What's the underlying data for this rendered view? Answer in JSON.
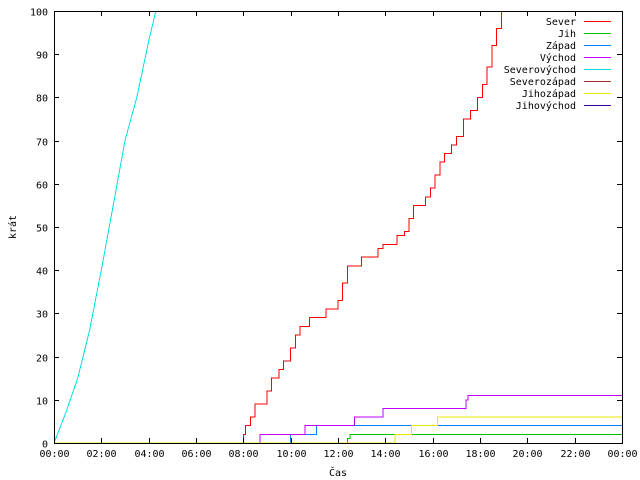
{
  "chart_data": {
    "type": "line",
    "xlabel": "Čas",
    "ylabel": "krát",
    "xlim": [
      0,
      24
    ],
    "ylim": [
      0,
      100
    ],
    "x_unit": "hours",
    "xticks": [
      {
        "value": 0,
        "label": "00:00"
      },
      {
        "value": 2,
        "label": "02:00"
      },
      {
        "value": 4,
        "label": "04:00"
      },
      {
        "value": 6,
        "label": "06:00"
      },
      {
        "value": 8,
        "label": "08:00"
      },
      {
        "value": 10,
        "label": "10:00"
      },
      {
        "value": 12,
        "label": "12:00"
      },
      {
        "value": 14,
        "label": "14:00"
      },
      {
        "value": 16,
        "label": "16:00"
      },
      {
        "value": 18,
        "label": "18:00"
      },
      {
        "value": 20,
        "label": "20:00"
      },
      {
        "value": 22,
        "label": "22:00"
      },
      {
        "value": 24,
        "label": "00:00"
      }
    ],
    "yticks": [
      0,
      10,
      20,
      30,
      40,
      50,
      60,
      70,
      80,
      90,
      100
    ],
    "grid": false,
    "legend_position": "top-right",
    "series": [
      {
        "name": "Sever",
        "color": "#ff0000",
        "step": true,
        "points": [
          [
            0,
            0
          ],
          [
            7.9,
            0
          ],
          [
            8.0,
            2
          ],
          [
            8.1,
            4
          ],
          [
            8.3,
            6
          ],
          [
            8.5,
            9
          ],
          [
            8.8,
            9
          ],
          [
            9.0,
            12
          ],
          [
            9.2,
            15
          ],
          [
            9.5,
            17
          ],
          [
            9.7,
            19
          ],
          [
            10.0,
            22
          ],
          [
            10.2,
            25
          ],
          [
            10.4,
            27
          ],
          [
            10.6,
            27
          ],
          [
            10.8,
            29
          ],
          [
            11.3,
            29
          ],
          [
            11.5,
            31
          ],
          [
            11.8,
            31
          ],
          [
            12.0,
            33
          ],
          [
            12.2,
            37
          ],
          [
            12.4,
            41
          ],
          [
            12.9,
            41
          ],
          [
            13.0,
            43
          ],
          [
            13.5,
            43
          ],
          [
            13.7,
            45
          ],
          [
            13.9,
            46
          ],
          [
            14.3,
            46
          ],
          [
            14.5,
            48
          ],
          [
            14.8,
            49
          ],
          [
            15.0,
            52
          ],
          [
            15.2,
            55
          ],
          [
            15.5,
            55
          ],
          [
            15.7,
            57
          ],
          [
            15.9,
            59
          ],
          [
            16.1,
            62
          ],
          [
            16.3,
            65
          ],
          [
            16.5,
            67
          ],
          [
            16.8,
            69
          ],
          [
            17.0,
            71
          ],
          [
            17.3,
            75
          ],
          [
            17.6,
            77
          ],
          [
            17.9,
            80
          ],
          [
            18.1,
            83
          ],
          [
            18.3,
            87
          ],
          [
            18.5,
            92
          ],
          [
            18.7,
            96
          ],
          [
            18.9,
            100
          ],
          [
            19.1,
            100
          ]
        ]
      },
      {
        "name": "Jih",
        "color": "#00c000",
        "step": true,
        "points": [
          [
            0,
            0
          ],
          [
            12.3,
            0
          ],
          [
            12.4,
            1
          ],
          [
            12.5,
            2
          ],
          [
            24,
            2
          ]
        ]
      },
      {
        "name": "Západ",
        "color": "#0080ff",
        "step": true,
        "points": [
          [
            0,
            0
          ],
          [
            9.9,
            0
          ],
          [
            10.0,
            2
          ],
          [
            11.0,
            2
          ],
          [
            11.1,
            4
          ],
          [
            24,
            4
          ]
        ]
      },
      {
        "name": "Východ",
        "color": "#c000ff",
        "step": true,
        "points": [
          [
            0,
            0
          ],
          [
            8.6,
            0
          ],
          [
            8.7,
            2
          ],
          [
            10.5,
            2
          ],
          [
            10.6,
            4
          ],
          [
            12.6,
            4
          ],
          [
            12.7,
            6
          ],
          [
            13.8,
            6
          ],
          [
            13.9,
            8
          ],
          [
            17.3,
            8
          ],
          [
            17.4,
            10
          ],
          [
            17.5,
            11
          ],
          [
            24,
            11
          ]
        ]
      },
      {
        "name": "Severovýchod",
        "color": "#00e0e0",
        "step": false,
        "points": [
          [
            0,
            0
          ],
          [
            0.5,
            7
          ],
          [
            1.0,
            15
          ],
          [
            1.5,
            26
          ],
          [
            2.0,
            40
          ],
          [
            2.5,
            55
          ],
          [
            3.0,
            70
          ],
          [
            3.5,
            80
          ],
          [
            4.0,
            93
          ],
          [
            4.3,
            100
          ]
        ]
      },
      {
        "name": "Severozápad",
        "color": "#a03030",
        "step": false,
        "points": []
      },
      {
        "name": "Jihozápad",
        "color": "#e8e800",
        "step": true,
        "points": [
          [
            0,
            0
          ],
          [
            14.3,
            0
          ],
          [
            14.4,
            2
          ],
          [
            15.0,
            2
          ],
          [
            15.1,
            4
          ],
          [
            16.1,
            4
          ],
          [
            16.2,
            6
          ],
          [
            24,
            6
          ]
        ]
      },
      {
        "name": "Jihovýchod",
        "color": "#4000a0",
        "step": false,
        "points": []
      }
    ]
  }
}
